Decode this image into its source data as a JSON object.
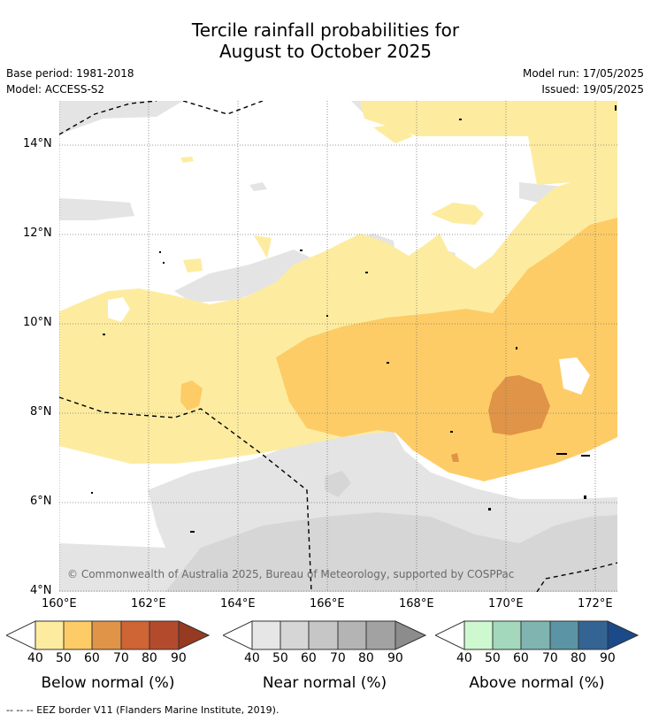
{
  "title_line1": "Tercile rainfall probabilities for",
  "title_line2": "August to October 2025",
  "base_period": "Base period: 1981-2018",
  "model": "Model: ACCESS-S2",
  "model_run": "Model run: 17/05/2025",
  "issued": "Issued: 19/05/2025",
  "copyright": "© Commonwealth of Australia 2025, Bureau of Meteorology, supported by COSPPac",
  "footnote": "--  --  -- EEZ border V11 (Flanders Marine Institute, 2019).",
  "map": {
    "lon_ticks": [
      "160°E",
      "162°E",
      "164°E",
      "166°E",
      "168°E",
      "170°E",
      "172°E"
    ],
    "lat_ticks": [
      "14°N",
      "12°N",
      "10°N",
      "8°N",
      "6°N",
      "4°N"
    ],
    "lon_range": [
      160,
      172.5
    ],
    "lat_range": [
      4,
      15
    ]
  },
  "colorbars": [
    {
      "label": "Below normal (%)",
      "ticks": [
        "40",
        "50",
        "60",
        "70",
        "80",
        "90"
      ],
      "colors": [
        "#fdeca0",
        "#fdcc66",
        "#e09448",
        "#cf6434",
        "#b44a2c",
        "#963a22"
      ]
    },
    {
      "label": "Near normal (%)",
      "ticks": [
        "40",
        "50",
        "60",
        "70",
        "80",
        "90"
      ],
      "colors": [
        "#e6e6e6",
        "#d6d6d6",
        "#c6c6c6",
        "#b4b4b4",
        "#a2a2a2",
        "#8c8c8c"
      ]
    },
    {
      "label": "Above normal (%)",
      "ticks": [
        "40",
        "50",
        "60",
        "70",
        "80",
        "90"
      ],
      "colors": [
        "#cef8d0",
        "#a4d8bc",
        "#80b4b0",
        "#5b94a4",
        "#336494",
        "#1a4a88"
      ]
    }
  ]
}
